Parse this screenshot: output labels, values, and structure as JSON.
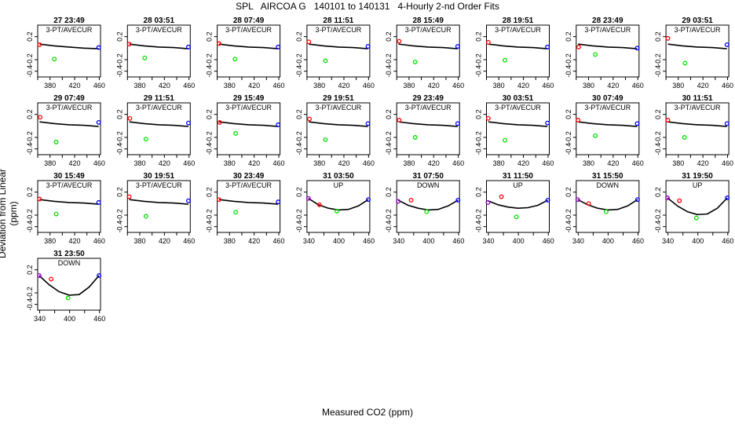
{
  "page": {
    "title": "SPL   AIRCOA G   140101 to 140131   4-Hourly 2-nd Order Fits",
    "xlabel": "Measured CO2 (ppm)",
    "ylabel": "Deviation from Linear (ppm)"
  },
  "chart_data": {
    "type": "scatter",
    "ylim": [
      -0.5,
      0.4
    ],
    "yticks": [
      0.2,
      -0.2,
      -0.4
    ],
    "ytick_labels": [
      "0.2",
      "-0.2",
      "-0.4"
    ],
    "colors": {
      "low": "#ff0000",
      "mid": "#00e000",
      "high": "#0000ff",
      "purple": "#9900cc",
      "curve": "#000000"
    },
    "panels": [
      {
        "time": "27 23:49",
        "label": "3-PT/AVECUR",
        "xlim": [
          360,
          462
        ],
        "xticks": [
          380,
          420,
          460
        ],
        "points": [
          {
            "x": 363,
            "y": 0.06,
            "c": "low"
          },
          {
            "x": 387,
            "y": -0.19,
            "c": "mid"
          },
          {
            "x": 459,
            "y": 0.01,
            "c": "high"
          }
        ],
        "curve": [
          0.07,
          0.04,
          0.02,
          0.0,
          -0.01
        ]
      },
      {
        "time": "28 03:51",
        "label": "3-PT/AVECUR",
        "xlim": [
          360,
          462
        ],
        "xticks": [
          380,
          420,
          460
        ],
        "points": [
          {
            "x": 363,
            "y": 0.07,
            "c": "low"
          },
          {
            "x": 388,
            "y": -0.17,
            "c": "mid"
          },
          {
            "x": 459,
            "y": 0.02,
            "c": "high"
          }
        ],
        "curve": [
          0.07,
          0.04,
          0.02,
          0.01,
          -0.01
        ]
      },
      {
        "time": "28 07:49",
        "label": "3-PT/AVECUR",
        "xlim": [
          360,
          462
        ],
        "xticks": [
          380,
          420,
          460
        ],
        "points": [
          {
            "x": 363,
            "y": 0.08,
            "c": "low"
          },
          {
            "x": 389,
            "y": -0.19,
            "c": "mid"
          },
          {
            "x": 459,
            "y": 0.02,
            "c": "high"
          }
        ],
        "curve": [
          0.07,
          0.04,
          0.02,
          0.01,
          -0.01
        ]
      },
      {
        "time": "28 11:51",
        "label": "3-PT/AVECUR",
        "xlim": [
          360,
          462
        ],
        "xticks": [
          380,
          420,
          460
        ],
        "points": [
          {
            "x": 363,
            "y": 0.11,
            "c": "low"
          },
          {
            "x": 390,
            "y": -0.22,
            "c": "mid"
          },
          {
            "x": 459,
            "y": 0.03,
            "c": "high"
          }
        ],
        "curve": [
          0.07,
          0.04,
          0.02,
          0.01,
          -0.01
        ]
      },
      {
        "time": "28 15:49",
        "label": "3-PT/AVECUR",
        "xlim": [
          360,
          462
        ],
        "xticks": [
          380,
          420,
          460
        ],
        "points": [
          {
            "x": 364,
            "y": 0.12,
            "c": "low"
          },
          {
            "x": 390,
            "y": -0.24,
            "c": "mid"
          },
          {
            "x": 459,
            "y": 0.03,
            "c": "high"
          }
        ],
        "curve": [
          0.07,
          0.04,
          0.02,
          0.01,
          -0.01
        ]
      },
      {
        "time": "28 19:51",
        "label": "3-PT/AVECUR",
        "xlim": [
          360,
          462
        ],
        "xticks": [
          380,
          420,
          460
        ],
        "points": [
          {
            "x": 363,
            "y": 0.1,
            "c": "low"
          },
          {
            "x": 390,
            "y": -0.21,
            "c": "mid"
          },
          {
            "x": 459,
            "y": 0.02,
            "c": "high"
          }
        ],
        "curve": [
          0.07,
          0.04,
          0.02,
          0.01,
          -0.01
        ]
      },
      {
        "time": "28 23:49",
        "label": "3-PT/AVECUR",
        "xlim": [
          360,
          462
        ],
        "xticks": [
          380,
          420,
          460
        ],
        "points": [
          {
            "x": 364,
            "y": 0.02,
            "c": "low"
          },
          {
            "x": 391,
            "y": -0.11,
            "c": "mid"
          },
          {
            "x": 459,
            "y": 0.0,
            "c": "high"
          }
        ],
        "curve": [
          0.07,
          0.04,
          0.02,
          0.01,
          -0.01
        ]
      },
      {
        "time": "29 03:51",
        "label": "3-PT/AVECUR",
        "xlim": [
          360,
          462
        ],
        "xticks": [
          380,
          420,
          460
        ],
        "points": [
          {
            "x": 363,
            "y": 0.17,
            "c": "low"
          },
          {
            "x": 391,
            "y": -0.26,
            "c": "mid"
          },
          {
            "x": 459,
            "y": 0.06,
            "c": "high"
          }
        ],
        "curve": [
          0.07,
          0.04,
          0.02,
          0.01,
          -0.01
        ]
      },
      {
        "time": "29 07:49",
        "label": "3-PT/AVECUR",
        "xlim": [
          360,
          462
        ],
        "xticks": [
          380,
          420,
          460
        ],
        "points": [
          {
            "x": 364,
            "y": 0.15,
            "c": "low"
          },
          {
            "x": 390,
            "y": -0.28,
            "c": "mid"
          },
          {
            "x": 459,
            "y": 0.06,
            "c": "high"
          }
        ],
        "curve": [
          0.07,
          0.04,
          0.02,
          0.01,
          -0.01
        ]
      },
      {
        "time": "29 11:51",
        "label": "3-PT/AVECUR",
        "xlim": [
          360,
          462
        ],
        "xticks": [
          380,
          420,
          460
        ],
        "points": [
          {
            "x": 364,
            "y": 0.13,
            "c": "low"
          },
          {
            "x": 390,
            "y": -0.23,
            "c": "mid"
          },
          {
            "x": 459,
            "y": 0.05,
            "c": "high"
          }
        ],
        "curve": [
          0.07,
          0.04,
          0.02,
          0.01,
          -0.01
        ]
      },
      {
        "time": "29 15:49",
        "label": "3-PT/AVECUR",
        "xlim": [
          360,
          462
        ],
        "xticks": [
          380,
          420,
          460
        ],
        "points": [
          {
            "x": 364,
            "y": 0.06,
            "c": "low"
          },
          {
            "x": 390,
            "y": -0.13,
            "c": "mid"
          },
          {
            "x": 459,
            "y": 0.02,
            "c": "high"
          }
        ],
        "curve": [
          0.07,
          0.04,
          0.02,
          0.01,
          -0.01
        ]
      },
      {
        "time": "29 19:51",
        "label": "3-PT/AVECUR",
        "xlim": [
          360,
          462
        ],
        "xticks": [
          380,
          420,
          460
        ],
        "points": [
          {
            "x": 364,
            "y": 0.12,
            "c": "low"
          },
          {
            "x": 390,
            "y": -0.24,
            "c": "mid"
          },
          {
            "x": 459,
            "y": 0.04,
            "c": "high"
          }
        ],
        "curve": [
          0.07,
          0.04,
          0.02,
          0.01,
          -0.01
        ]
      },
      {
        "time": "29 23:49",
        "label": "3-PT/AVECUR",
        "xlim": [
          360,
          462
        ],
        "xticks": [
          380,
          420,
          460
        ],
        "points": [
          {
            "x": 364,
            "y": 0.1,
            "c": "low"
          },
          {
            "x": 390,
            "y": -0.2,
            "c": "mid"
          },
          {
            "x": 459,
            "y": 0.04,
            "c": "high"
          }
        ],
        "curve": [
          0.07,
          0.04,
          0.02,
          0.01,
          -0.01
        ]
      },
      {
        "time": "30 03:51",
        "label": "3-PT/AVECUR",
        "xlim": [
          360,
          462
        ],
        "xticks": [
          380,
          420,
          460
        ],
        "points": [
          {
            "x": 363,
            "y": 0.13,
            "c": "low"
          },
          {
            "x": 390,
            "y": -0.25,
            "c": "mid"
          },
          {
            "x": 459,
            "y": 0.05,
            "c": "high"
          }
        ],
        "curve": [
          0.07,
          0.04,
          0.02,
          0.01,
          -0.01
        ]
      },
      {
        "time": "30 07:49",
        "label": "3-PT/AVECUR",
        "xlim": [
          360,
          462
        ],
        "xticks": [
          380,
          420,
          460
        ],
        "points": [
          {
            "x": 363,
            "y": 0.1,
            "c": "low"
          },
          {
            "x": 391,
            "y": -0.17,
            "c": "mid"
          },
          {
            "x": 459,
            "y": 0.04,
            "c": "high"
          }
        ],
        "curve": [
          0.07,
          0.04,
          0.02,
          0.01,
          -0.01
        ]
      },
      {
        "time": "30 11:51",
        "label": "3-PT/AVECUR",
        "xlim": [
          360,
          462
        ],
        "xticks": [
          380,
          420,
          460
        ],
        "points": [
          {
            "x": 363,
            "y": 0.1,
            "c": "low"
          },
          {
            "x": 390,
            "y": -0.2,
            "c": "mid"
          },
          {
            "x": 459,
            "y": 0.04,
            "c": "high"
          }
        ],
        "curve": [
          0.07,
          0.04,
          0.02,
          0.01,
          -0.01
        ]
      },
      {
        "time": "30 15:49",
        "label": "3-PT/AVECUR",
        "xlim": [
          360,
          462
        ],
        "xticks": [
          380,
          420,
          460
        ],
        "points": [
          {
            "x": 363,
            "y": 0.08,
            "c": "low"
          },
          {
            "x": 390,
            "y": -0.18,
            "c": "mid"
          },
          {
            "x": 459,
            "y": 0.02,
            "c": "high"
          }
        ],
        "curve": [
          0.07,
          0.04,
          0.02,
          0.01,
          -0.01
        ]
      },
      {
        "time": "30 19:51",
        "label": "3-PT/AVECUR",
        "xlim": [
          360,
          462
        ],
        "xticks": [
          380,
          420,
          460
        ],
        "points": [
          {
            "x": 363,
            "y": 0.12,
            "c": "low"
          },
          {
            "x": 390,
            "y": -0.22,
            "c": "mid"
          },
          {
            "x": 459,
            "y": 0.05,
            "c": "high"
          }
        ],
        "curve": [
          0.07,
          0.04,
          0.02,
          0.01,
          -0.01
        ]
      },
      {
        "time": "30 23:49",
        "label": "3-PT/AVECUR",
        "xlim": [
          360,
          462
        ],
        "xticks": [
          380,
          420,
          460
        ],
        "points": [
          {
            "x": 363,
            "y": 0.07,
            "c": "low"
          },
          {
            "x": 390,
            "y": -0.15,
            "c": "mid"
          },
          {
            "x": 459,
            "y": 0.03,
            "c": "high"
          }
        ],
        "curve": [
          0.07,
          0.04,
          0.02,
          0.01,
          -0.01
        ]
      },
      {
        "time": "31 03:50",
        "label": "UP",
        "xlim": [
          336,
          462
        ],
        "xticks": [
          340,
          400,
          460
        ],
        "points": [
          {
            "x": 339,
            "y": 0.09,
            "c": "purple"
          },
          {
            "x": 361,
            "y": -0.02,
            "c": "low"
          },
          {
            "x": 396,
            "y": -0.13,
            "c": "mid"
          },
          {
            "x": 459,
            "y": 0.07,
            "c": "high"
          }
        ],
        "curve": [
          0.09,
          -0.02,
          -0.08,
          -0.11,
          -0.1,
          -0.04,
          0.07
        ]
      },
      {
        "time": "31 07:50",
        "label": "DOWN",
        "xlim": [
          336,
          462
        ],
        "xticks": [
          340,
          400,
          460
        ],
        "points": [
          {
            "x": 339,
            "y": 0.04,
            "c": "purple"
          },
          {
            "x": 365,
            "y": 0.06,
            "c": "low"
          },
          {
            "x": 396,
            "y": -0.14,
            "c": "mid"
          },
          {
            "x": 459,
            "y": 0.06,
            "c": "high"
          }
        ],
        "curve": [
          0.06,
          -0.03,
          -0.08,
          -0.11,
          -0.1,
          -0.04,
          0.06
        ]
      },
      {
        "time": "31 11:50",
        "label": "UP",
        "xlim": [
          336,
          462
        ],
        "xticks": [
          340,
          400,
          460
        ],
        "points": [
          {
            "x": 339,
            "y": 0.02,
            "c": "purple"
          },
          {
            "x": 366,
            "y": 0.12,
            "c": "low"
          },
          {
            "x": 396,
            "y": -0.23,
            "c": "mid"
          },
          {
            "x": 459,
            "y": 0.06,
            "c": "high"
          }
        ],
        "curve": [
          0.05,
          -0.02,
          -0.06,
          -0.08,
          -0.07,
          -0.03,
          0.06
        ]
      },
      {
        "time": "31 15:50",
        "label": "DOWN",
        "xlim": [
          336,
          462
        ],
        "xticks": [
          340,
          400,
          460
        ],
        "points": [
          {
            "x": 339,
            "y": 0.07,
            "c": "purple"
          },
          {
            "x": 361,
            "y": 0.0,
            "c": "low"
          },
          {
            "x": 396,
            "y": -0.14,
            "c": "mid"
          },
          {
            "x": 459,
            "y": 0.07,
            "c": "high"
          }
        ],
        "curve": [
          0.07,
          -0.02,
          -0.08,
          -0.11,
          -0.1,
          -0.04,
          0.07
        ]
      },
      {
        "time": "31 19:50",
        "label": "UP",
        "xlim": [
          336,
          462
        ],
        "xticks": [
          340,
          400,
          460
        ],
        "points": [
          {
            "x": 339,
            "y": 0.1,
            "c": "purple"
          },
          {
            "x": 363,
            "y": 0.05,
            "c": "low"
          },
          {
            "x": 397,
            "y": -0.25,
            "c": "mid"
          },
          {
            "x": 459,
            "y": 0.1,
            "c": "high"
          }
        ],
        "curve": [
          0.1,
          -0.04,
          -0.14,
          -0.19,
          -0.18,
          -0.08,
          0.1
        ]
      },
      {
        "time": "31 23:50",
        "label": "DOWN",
        "xlim": [
          336,
          462
        ],
        "xticks": [
          340,
          400,
          460
        ],
        "points": [
          {
            "x": 339,
            "y": 0.1,
            "c": "purple"
          },
          {
            "x": 363,
            "y": 0.04,
            "c": "low"
          },
          {
            "x": 397,
            "y": -0.29,
            "c": "mid"
          },
          {
            "x": 459,
            "y": 0.1,
            "c": "high"
          }
        ],
        "curve": [
          0.1,
          -0.06,
          -0.18,
          -0.24,
          -0.23,
          -0.1,
          0.1
        ]
      }
    ]
  }
}
